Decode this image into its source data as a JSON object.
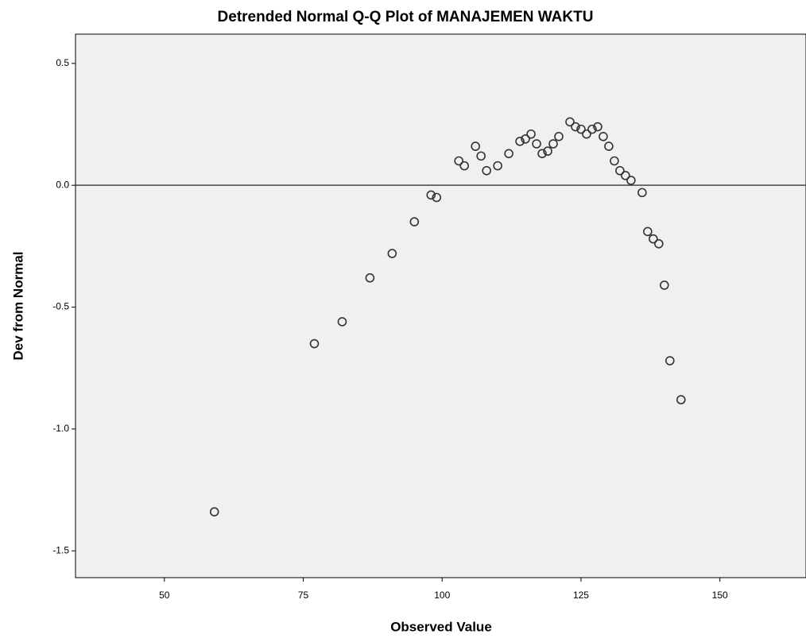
{
  "chart_data": {
    "type": "scatter",
    "title": "Detrended Normal Q-Q Plot of MANAJEMEN WAKTU",
    "xlabel": "Observed Value",
    "ylabel": "Dev from Normal",
    "x": [
      59,
      77,
      82,
      87,
      91,
      95,
      98,
      99,
      103,
      104,
      106,
      107,
      108,
      110,
      112,
      114,
      115,
      116,
      117,
      118,
      119,
      120,
      121,
      123,
      124,
      125,
      126,
      127,
      128,
      129,
      130,
      131,
      132,
      133,
      134,
      136,
      137,
      138,
      139,
      140,
      141,
      143
    ],
    "values": [
      -1.34,
      -0.65,
      -0.56,
      -0.38,
      -0.28,
      -0.15,
      -0.04,
      -0.05,
      0.1,
      0.08,
      0.16,
      0.12,
      0.06,
      0.08,
      0.13,
      0.18,
      0.19,
      0.21,
      0.17,
      0.13,
      0.14,
      0.17,
      0.2,
      0.26,
      0.24,
      0.23,
      0.21,
      0.23,
      0.24,
      0.2,
      0.16,
      0.1,
      0.06,
      0.04,
      0.02,
      -0.03,
      -0.19,
      -0.22,
      -0.24,
      -0.41,
      -0.72,
      -0.88
    ],
    "color": "#333333",
    "xlim": [
      34,
      165.5
    ],
    "xticks": [
      50,
      75,
      100,
      125,
      150
    ],
    "ylim": [
      -1.61,
      0.62
    ],
    "yticks": [
      0.5,
      {
        "value": 0,
        "label": "0.0"
      },
      -0.5,
      {
        "value": -1,
        "label": "-1.0"
      },
      -1.5
    ],
    "reference_line": 0,
    "plot_background": "#f0f0f0"
  }
}
